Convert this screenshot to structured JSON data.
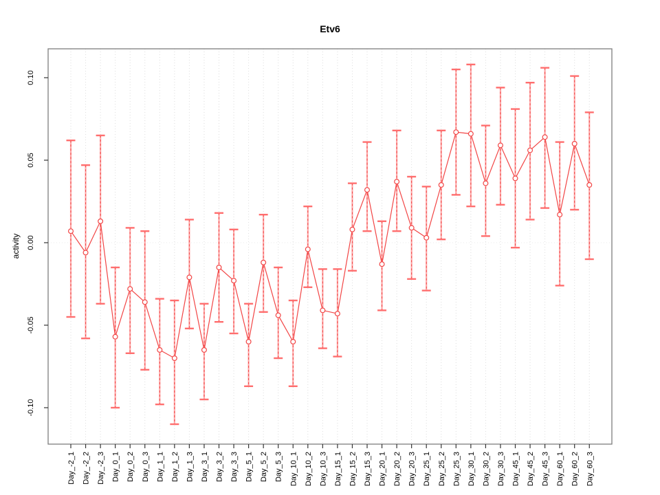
{
  "figure": {
    "title": "Etv6",
    "y_axis_title": "activity"
  },
  "colors": {
    "series_red": "#f24444",
    "bar_fill_red": "#ff8d8d",
    "bar_dash_red": "#ee3b3b",
    "cap_red": "#ff6e6e",
    "gridline_gray": "#dcdcdc",
    "zero_line_gray": "#e9e9e9",
    "frame_gray": "#7d7d7d",
    "text_black": "#000000"
  },
  "chart_data": {
    "type": "scatter",
    "subtype": "points-with-error-bars-connected-line",
    "title": "Etv6",
    "xlabel": "",
    "ylabel": "activity",
    "ylim": [
      -0.122,
      0.118
    ],
    "yticks": [
      -0.1,
      -0.05,
      0.0,
      0.05,
      0.1
    ],
    "ytick_labels": [
      "-0.10",
      "-0.05",
      "0.00",
      "0.05",
      "0.10"
    ],
    "grid": "vertical dotted gridline at every category; horizontal dotted line at y=0",
    "legend_position": "none",
    "marker": "open-circle",
    "categories": [
      "Day_-2_1",
      "Day_-2_2",
      "Day_-2_3",
      "Day_0_1",
      "Day_0_2",
      "Day_0_3",
      "Day_1_1",
      "Day_1_2",
      "Day_1_3",
      "Day_3_1",
      "Day_3_2",
      "Day_3_3",
      "Day_5_1",
      "Day_5_2",
      "Day_5_3",
      "Day_10_1",
      "Day_10_2",
      "Day_10_3",
      "Day_15_1",
      "Day_15_2",
      "Day_15_3",
      "Day_20_1",
      "Day_20_2",
      "Day_20_3",
      "Day_25_1",
      "Day_25_2",
      "Day_25_3",
      "Day_30_1",
      "Day_30_2",
      "Day_30_3",
      "Day_45_1",
      "Day_45_2",
      "Day_45_3",
      "Day_60_1",
      "Day_60_2",
      "Day_60_3"
    ],
    "series": [
      {
        "name": "activity",
        "means": [
          0.007,
          -0.006,
          0.013,
          -0.057,
          -0.028,
          -0.036,
          -0.065,
          -0.07,
          -0.021,
          -0.065,
          -0.015,
          -0.023,
          -0.06,
          -0.012,
          -0.044,
          -0.06,
          -0.004,
          -0.041,
          -0.043,
          0.008,
          0.032,
          -0.013,
          0.037,
          0.009,
          0.003,
          0.035,
          0.067,
          0.066,
          0.036,
          0.059,
          0.039,
          0.056,
          0.064,
          0.017,
          0.06,
          0.035
        ],
        "upper": [
          0.062,
          0.047,
          0.065,
          -0.015,
          0.009,
          0.007,
          -0.034,
          -0.035,
          0.014,
          -0.037,
          0.018,
          0.008,
          -0.037,
          0.017,
          -0.015,
          -0.035,
          0.022,
          -0.016,
          -0.016,
          0.036,
          0.061,
          0.013,
          0.068,
          0.04,
          0.034,
          0.068,
          0.105,
          0.108,
          0.071,
          0.094,
          0.081,
          0.097,
          0.106,
          0.061,
          0.101,
          0.079
        ],
        "lower": [
          -0.045,
          -0.058,
          -0.037,
          -0.1,
          -0.067,
          -0.077,
          -0.098,
          -0.11,
          -0.052,
          -0.095,
          -0.048,
          -0.055,
          -0.087,
          -0.042,
          -0.07,
          -0.087,
          -0.027,
          -0.064,
          -0.069,
          -0.017,
          0.007,
          -0.041,
          0.007,
          -0.022,
          -0.029,
          0.002,
          0.029,
          0.022,
          0.004,
          0.023,
          -0.003,
          0.014,
          0.021,
          -0.026,
          0.02,
          -0.01
        ]
      }
    ]
  }
}
